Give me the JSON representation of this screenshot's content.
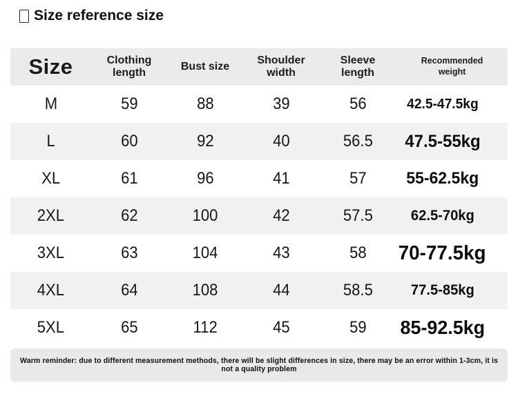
{
  "title": {
    "text": "Size reference size",
    "icon": "missing-glyph-box"
  },
  "chart_data": {
    "type": "table",
    "title": "Size reference size",
    "columns": [
      "Size",
      "Clothing length",
      "Bust size",
      "Shoulder width",
      "Sleeve length",
      "Recommended weight"
    ],
    "columns_display": [
      "Size",
      "Clothing\nlength",
      "Bust size",
      "Shoulder\nwidth",
      "Sleeve\nlength",
      "Recommended\nweight"
    ],
    "rows": [
      [
        "M",
        "59",
        "88",
        "39",
        "56",
        "42.5-47.5kg"
      ],
      [
        "L",
        "60",
        "92",
        "40",
        "56.5",
        "47.5-55kg"
      ],
      [
        "XL",
        "61",
        "96",
        "41",
        "57",
        "55-62.5kg"
      ],
      [
        "2XL",
        "62",
        "100",
        "42",
        "57.5",
        "62.5-70kg"
      ],
      [
        "3XL",
        "63",
        "104",
        "43",
        "58",
        "70-77.5kg"
      ],
      [
        "4XL",
        "64",
        "108",
        "44",
        "58.5",
        "77.5-85kg"
      ],
      [
        "5XL",
        "65",
        "112",
        "45",
        "59",
        "85-92.5kg"
      ]
    ]
  },
  "footer": {
    "note": "Warm reminder: due to different measurement methods, there will be slight differences in size, there may be an error within 1-3cm, it is not a quality problem"
  },
  "colors": {
    "header_bg": "#ebebeb",
    "stripe_bg": "#f1f1f1",
    "footer_bg": "#e9e9e9",
    "text": "#1a1a1a"
  }
}
